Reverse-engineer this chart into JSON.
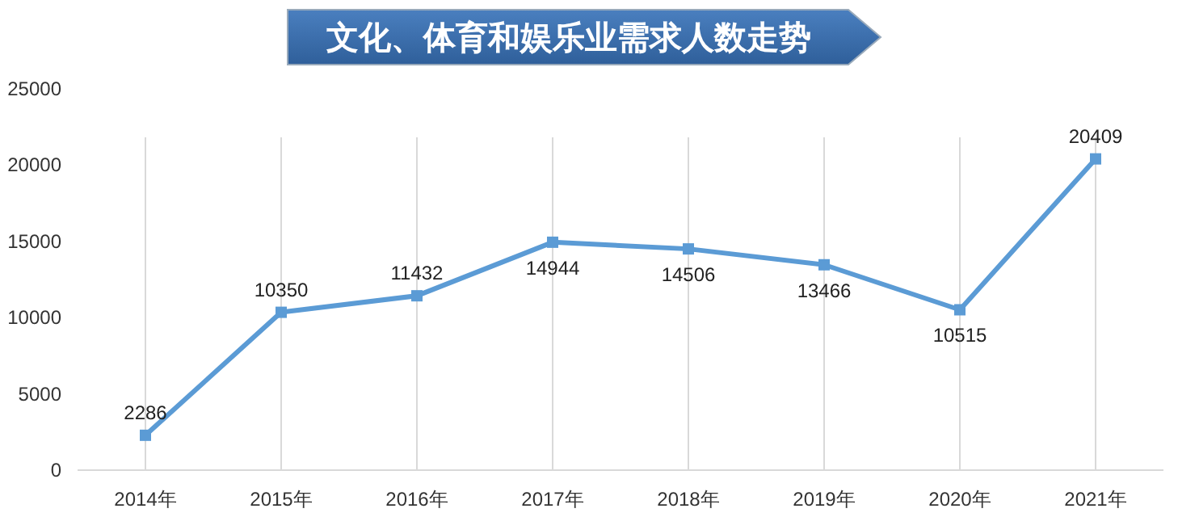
{
  "chart_data": {
    "type": "line",
    "title": "文化、体育和娱乐业需求人数走势",
    "categories": [
      "2014年",
      "2015年",
      "2016年",
      "2017年",
      "2018年",
      "2019年",
      "2020年",
      "2021年"
    ],
    "series": [
      {
        "color": "#5b9bd5",
        "values": [
          2286,
          10350,
          11432,
          14944,
          14506,
          13466,
          10515,
          20409
        ]
      }
    ],
    "ylim": [
      0,
      25000
    ],
    "yticks": [
      0,
      5000,
      10000,
      15000,
      20000,
      25000
    ],
    "grid": "x",
    "marker": "square",
    "line_style": "solid",
    "data_labels": true
  }
}
